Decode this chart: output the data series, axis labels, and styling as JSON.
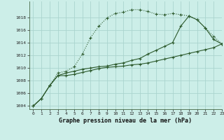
{
  "title": "Graphe pression niveau de la mer (hPa)",
  "background_color": "#cceee8",
  "grid_color": "#aad4ce",
  "line_color": "#2d5a2d",
  "xlim": [
    -0.5,
    23
  ],
  "ylim": [
    1003.5,
    1020.5
  ],
  "yticks": [
    1004,
    1006,
    1008,
    1010,
    1012,
    1014,
    1016,
    1018
  ],
  "xticks": [
    0,
    1,
    2,
    3,
    4,
    5,
    6,
    7,
    8,
    9,
    10,
    11,
    12,
    13,
    14,
    15,
    16,
    17,
    18,
    19,
    20,
    21,
    22,
    23
  ],
  "series": [
    {
      "y": [
        1004.0,
        1005.2,
        1007.2,
        1009.2,
        1009.5,
        1010.2,
        1012.2,
        1014.8,
        1016.6,
        1017.9,
        1018.6,
        1018.8,
        1019.2,
        1019.2,
        1018.9,
        1018.5,
        1018.4,
        1018.6,
        1018.4,
        1018.2,
        1017.6,
        1016.3,
        1015.0,
        1013.8
      ],
      "linestyle": "dotted",
      "marker": "+"
    },
    {
      "y": [
        1004.0,
        1005.2,
        1007.2,
        1008.8,
        1008.8,
        1009.0,
        1009.3,
        1009.6,
        1009.9,
        1010.1,
        1010.2,
        1010.3,
        1010.5,
        1010.6,
        1010.8,
        1011.1,
        1011.4,
        1011.7,
        1012.0,
        1012.3,
        1012.6,
        1012.9,
        1013.2,
        1013.8
      ],
      "linestyle": "solid",
      "marker": "+"
    },
    {
      "y": [
        1004.0,
        1005.2,
        1007.2,
        1008.8,
        1009.2,
        1009.5,
        1009.8,
        1010.0,
        1010.2,
        1010.3,
        1010.6,
        1010.8,
        1011.2,
        1011.5,
        1012.2,
        1012.8,
        1013.4,
        1014.0,
        1016.6,
        1018.2,
        1017.6,
        1016.3,
        1014.5,
        1013.8
      ],
      "linestyle": "solid",
      "marker": "+"
    }
  ]
}
